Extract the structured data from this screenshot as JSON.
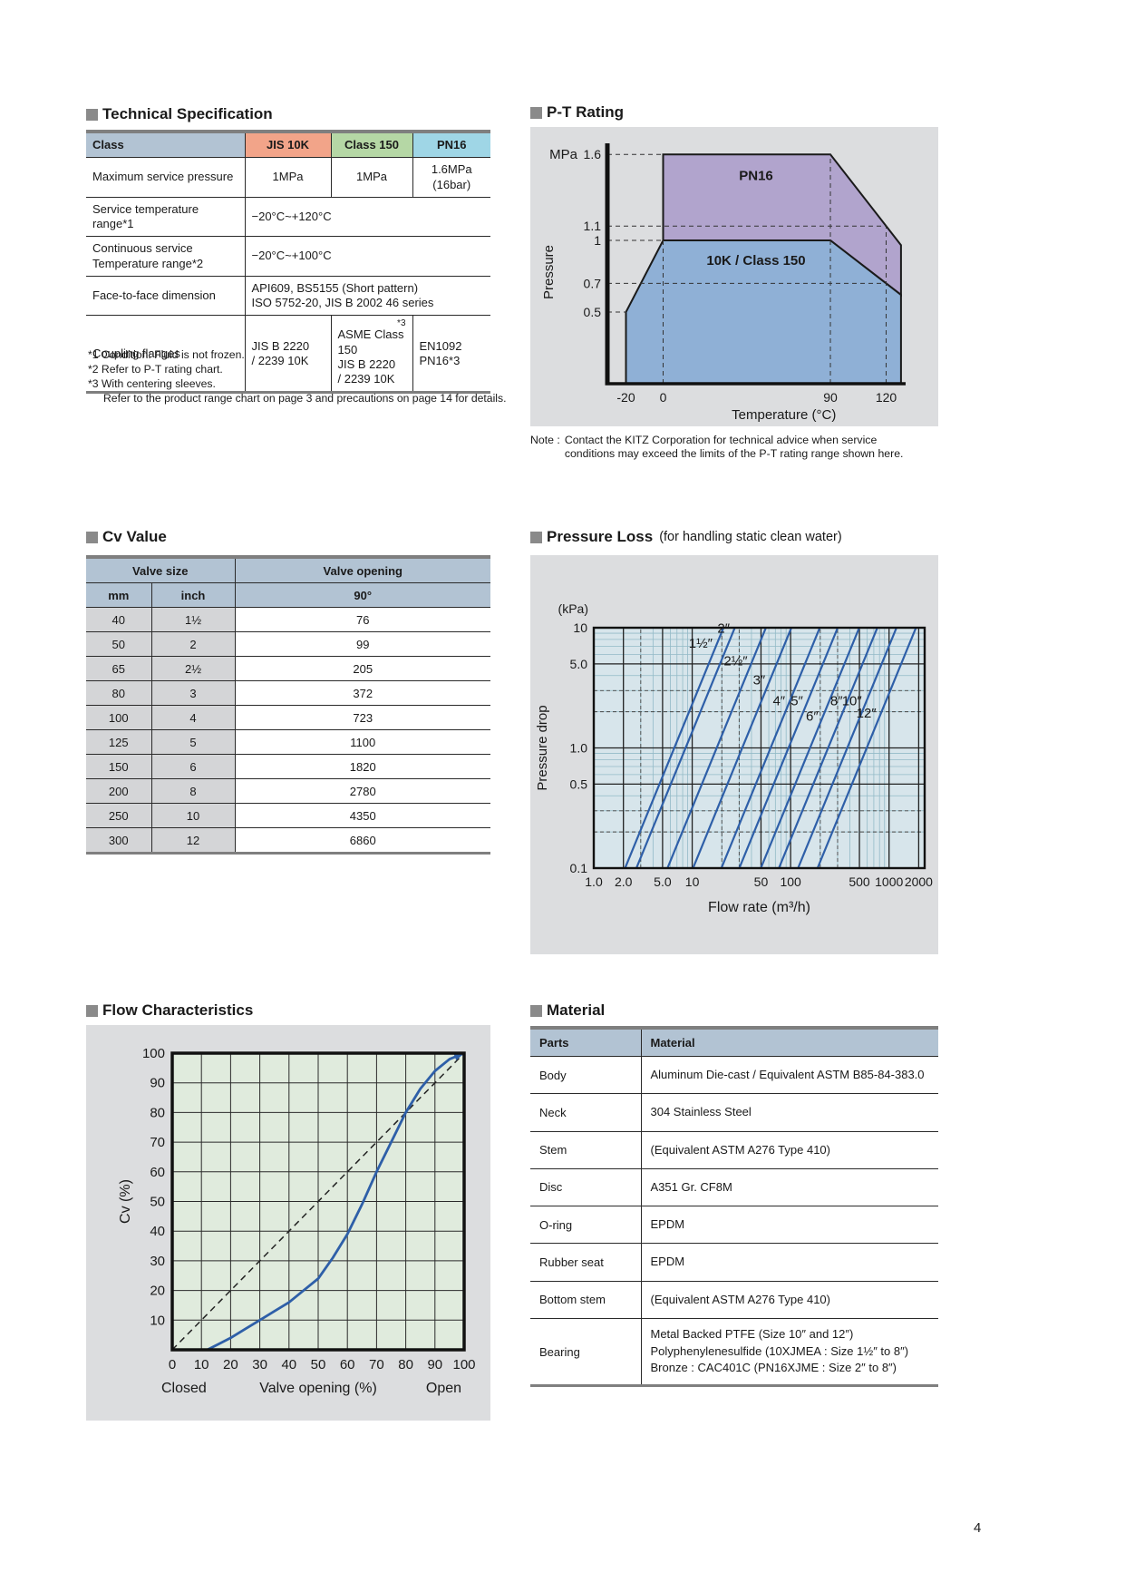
{
  "page_number": "4",
  "tech_spec": {
    "title": "Technical Specification",
    "table": {
      "class_label": "Class",
      "cols": [
        "JIS 10K",
        "Class 150",
        "PN16"
      ]
    },
    "rows": {
      "max_pressure": {
        "label": "Maximum service pressure",
        "values": [
          "1MPa",
          "1MPa",
          "1.6MPa\n(16bar)"
        ]
      },
      "service_temp": {
        "label": "Service temperature range*1",
        "value": "−20°C~+120°C"
      },
      "continuous_temp": {
        "label": "Continuous service\nTemperature range*2",
        "value": "−20°C~+100°C"
      },
      "face_to_face": {
        "label": "Face-to-face dimension",
        "value": "API609, BS5155 (Short pattern)\nISO 5752-20, JIS B 2002 46 series"
      },
      "coupling": {
        "label": "Coupling flanges",
        "jis10k": "JIS B 2220\n/ 2239 10K",
        "class150_sup": "*3",
        "class150": "ASME Class 150\nJIS B 2220\n/ 2239 10K",
        "pn16": "EN1092\nPN16*3"
      }
    },
    "footnotes": [
      "*1 Condition: Fluid is not frozen.",
      "*2 Refer to P-T rating chart.",
      "*3 With centering sleeves.",
      "Refer to the product range chart on page 3 and precautions on page 14 for details."
    ]
  },
  "cv_value": {
    "title": "Cv Value",
    "header": {
      "valve_size": "Valve size",
      "valve_opening": "Valve opening",
      "mm": "mm",
      "inch": "inch",
      "opening_90": "90°"
    },
    "rows": [
      [
        "40",
        "1½",
        "76"
      ],
      [
        "50",
        "2",
        "99"
      ],
      [
        "65",
        "2½",
        "205"
      ],
      [
        "80",
        "3",
        "372"
      ],
      [
        "100",
        "4",
        "723"
      ],
      [
        "125",
        "5",
        "1100"
      ],
      [
        "150",
        "6",
        "1820"
      ],
      [
        "200",
        "8",
        "2780"
      ],
      [
        "250",
        "10",
        "4350"
      ],
      [
        "300",
        "12",
        "6860"
      ]
    ]
  },
  "material": {
    "title": "Material",
    "header": [
      "Parts",
      "Material"
    ],
    "rows": [
      [
        "Body",
        "Aluminum Die-cast / Equivalent ASTM B85-84-383.0"
      ],
      [
        "Neck",
        "304 Stainless Steel"
      ],
      [
        "Stem",
        "(Equivalent ASTM A276 Type 410)"
      ],
      [
        "Disc",
        "A351 Gr. CF8M"
      ],
      [
        "O-ring",
        "EPDM"
      ],
      [
        "Rubber seat",
        "EPDM"
      ],
      [
        "Bottom stem",
        "(Equivalent ASTM A276 Type 410)"
      ],
      [
        "Bearing",
        "Metal Backed PTFE (Size 10″ and 12″)\nPolyphenylenesulfide (10XJMEA : Size 1½″ to 8″)\nBronze : CAC401C (PN16XJME : Size 2″ to 8″)"
      ]
    ]
  },
  "chart_data": [
    {
      "id": "pt_rating",
      "type": "area",
      "title": "P-T Rating",
      "xlabel": "Temperature (°C)",
      "ylabel": "Pressure",
      "y_unit": "MPa",
      "xlim": [
        -30,
        131
      ],
      "ylim": [
        0,
        1.79
      ],
      "x_ticks": [
        {
          "v": -20,
          "label": "-20"
        },
        {
          "v": 0,
          "label": "0"
        },
        {
          "v": 90,
          "label": "90"
        },
        {
          "v": 120,
          "label": "120"
        }
      ],
      "y_ticks": [
        {
          "v": 1.6,
          "label": "1.6"
        },
        {
          "v": 1.1,
          "label": "1.1"
        },
        {
          "v": 1.0,
          "label": "1"
        },
        {
          "v": 0.7,
          "label": "0.7"
        },
        {
          "v": 0.5,
          "label": "0.5"
        }
      ],
      "regions": [
        {
          "name": "PN16",
          "label": "PN16",
          "label_at": [
            50,
            1.42
          ],
          "color": "#b1a4cd",
          "points": [
            [
              0,
              1.0
            ],
            [
              0,
              1.6
            ],
            [
              90,
              1.6
            ],
            [
              128,
              0.967
            ],
            [
              128,
              0.62
            ],
            [
              90,
              1.0
            ]
          ]
        },
        {
          "name": "10K / Class 150",
          "label": "10K / Class 150",
          "label_at": [
            50,
            0.83
          ],
          "color": "#8fb0d6",
          "points": [
            [
              -20,
              0
            ],
            [
              -20,
              0.5
            ],
            [
              0,
              1.0
            ],
            [
              90,
              1.0
            ],
            [
              128,
              0.62
            ],
            [
              128,
              0
            ]
          ]
        }
      ],
      "dashed_h": [
        [
          1.6,
          0
        ],
        [
          1.1,
          120
        ],
        [
          1.0,
          0
        ],
        [
          0.7,
          120
        ],
        [
          0.5,
          -20
        ]
      ],
      "dashed_v": [
        [
          0,
          1.0
        ],
        [
          90,
          1.6
        ],
        [
          120,
          1.1
        ]
      ],
      "note_label": "Note :",
      "note": "Contact the KITZ Corporation for technical advice when service\nconditions may exceed the limits of the P-T rating range shown here."
    },
    {
      "id": "pressure_loss",
      "type": "line",
      "title": "Pressure Loss",
      "title_suffix": "(for handling static clean water)",
      "x_scale": "log",
      "y_scale": "log",
      "xlabel": "Flow rate (m³/h)",
      "ylabel": "Pressure drop",
      "y_unit": "(kPa)",
      "xlim": [
        1,
        2300
      ],
      "ylim": [
        0.1,
        10
      ],
      "x_ticks": [
        {
          "v": 1,
          "label": "1.0"
        },
        {
          "v": 2,
          "label": "2.0"
        },
        {
          "v": 5,
          "label": "5.0"
        },
        {
          "v": 10,
          "label": "10"
        },
        {
          "v": 50,
          "label": "50"
        },
        {
          "v": 100,
          "label": "100"
        },
        {
          "v": 500,
          "label": "500"
        },
        {
          "v": 1000,
          "label": "1000"
        },
        {
          "v": 2000,
          "label": "2000"
        }
      ],
      "y_ticks": [
        {
          "v": 10,
          "label": "10"
        },
        {
          "v": 5,
          "label": "5.0"
        },
        {
          "v": 1,
          "label": "1.0"
        },
        {
          "v": 0.5,
          "label": "0.5"
        },
        {
          "v": 0.1,
          "label": "0.1"
        }
      ],
      "dashed_x": [
        3,
        20,
        30,
        200,
        300
      ],
      "dashed_y": [
        2,
        3,
        0.2,
        0.3
      ],
      "line_color": "#2e5fa8",
      "series": [
        {
          "label": "1½″",
          "cv": 76,
          "q_at": [
            2.08,
            20.8
          ],
          "label_p": 6.5
        },
        {
          "label": "2″",
          "cv": 99,
          "q_at": [
            2.71,
            27.1
          ],
          "label_p": 8.6
        },
        {
          "label": "2½″",
          "cv": 205,
          "q_at": [
            5.61,
            56.1
          ],
          "label_p": 4.6
        },
        {
          "label": "3″",
          "cv": 372,
          "q_at": [
            10.2,
            101.8
          ],
          "label_p": 3.2
        },
        {
          "label": "4″",
          "cv": 723,
          "q_at": [
            19.8,
            197.8
          ],
          "label_p": 2.15
        },
        {
          "label": "5″",
          "cv": 1100,
          "q_at": [
            30.1,
            300.9
          ],
          "label_p": 2.15
        },
        {
          "label": "6″",
          "cv": 1820,
          "q_at": [
            49.8,
            497.9
          ],
          "label_p": 1.6
        },
        {
          "label": "8″",
          "cv": 2780,
          "q_at": [
            76.0,
            760.4
          ],
          "label_p": 2.15
        },
        {
          "label": "10″",
          "cv": 4350,
          "q_at": [
            119.0,
            1190.0
          ],
          "label_p": 2.15
        },
        {
          "label": "12″",
          "cv": 6860,
          "q_at": [
            187.7,
            1877.0
          ],
          "label_p": 1.7
        }
      ]
    },
    {
      "id": "flow_characteristics",
      "type": "line",
      "title": "Flow Characteristics",
      "xlabel": "Valve opening (%)",
      "ylabel": "Cv (%)",
      "x_left_label": "Closed",
      "x_right_label": "Open",
      "xlim": [
        0,
        100
      ],
      "ylim": [
        0,
        100
      ],
      "x_ticks": [
        0,
        10,
        20,
        30,
        40,
        50,
        60,
        70,
        80,
        90,
        100
      ],
      "y_ticks": [
        10,
        20,
        30,
        40,
        50,
        60,
        70,
        80,
        90,
        100
      ],
      "line_color": "#2e5fa8",
      "reference_line": [
        [
          0,
          0
        ],
        [
          100,
          100
        ]
      ],
      "curve": [
        [
          12,
          0
        ],
        [
          16,
          2
        ],
        [
          20,
          4
        ],
        [
          25,
          7
        ],
        [
          30,
          10
        ],
        [
          35,
          13
        ],
        [
          40,
          16
        ],
        [
          45,
          20
        ],
        [
          50,
          24
        ],
        [
          55,
          31
        ],
        [
          60,
          39
        ],
        [
          65,
          49
        ],
        [
          70,
          60
        ],
        [
          75,
          70
        ],
        [
          80,
          80
        ],
        [
          85,
          88
        ],
        [
          90,
          94
        ],
        [
          95,
          98
        ],
        [
          100,
          100
        ]
      ]
    }
  ]
}
